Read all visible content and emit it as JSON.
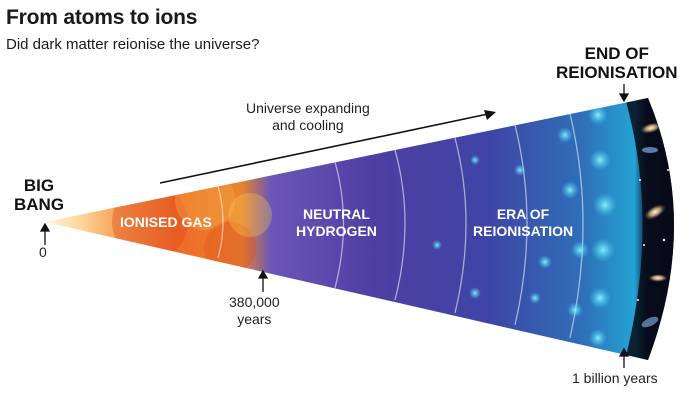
{
  "header": {
    "title": "From atoms to ions",
    "subtitle": "Did dark matter reionise the universe?"
  },
  "diagram": {
    "expansion_label_line1": "Universe expanding",
    "expansion_label_line2": "and cooling",
    "stages": {
      "start_line1": "BIG",
      "start_line2": "BANG",
      "end_line1": "END OF",
      "end_line2": "REIONISATION",
      "ionised": "IONISED GAS",
      "neutral_line1": "NEUTRAL",
      "neutral_line2": "HYDROGEN",
      "era_line1": "ERA OF",
      "era_line2": "REIONISATION"
    },
    "markers": {
      "zero": "0",
      "recombination_line1": "380,000",
      "recombination_line2": "years",
      "billion": "1 billion years"
    }
  }
}
